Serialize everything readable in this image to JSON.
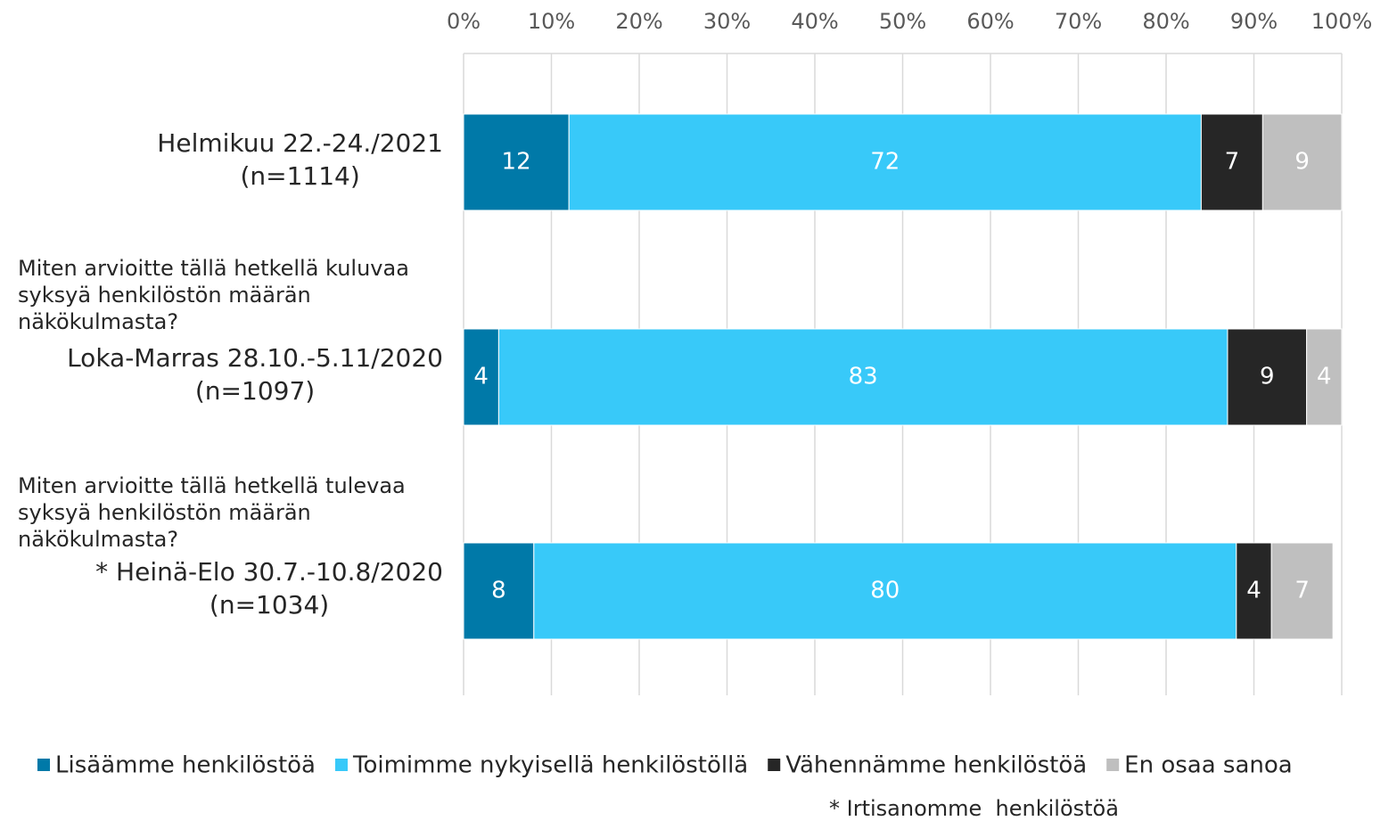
{
  "chart_data": {
    "type": "stacked-bar-horizontal",
    "categories": [
      [
        "Helmikuu 22.-24./2021",
        "(n=1114)"
      ],
      [
        "Loka-Marras 28.10.-5.11/2020",
        "(n=1097)"
      ],
      [
        "* Heinä-Elo 30.7.-10.8/2020",
        "(n=1034)"
      ]
    ],
    "series": [
      {
        "name": "Lisäämme henkilöstöä",
        "color": "#0079a8",
        "values": [
          12,
          4,
          8
        ]
      },
      {
        "name": "Toimimme nykyisellä henkilöstöllä",
        "color": "#38c9f9",
        "values": [
          72,
          83,
          80
        ]
      },
      {
        "name": "Vähennämme henkilöstöä",
        "color": "#262626",
        "values": [
          7,
          9,
          4
        ]
      },
      {
        "name": "En osaa sanoa",
        "color": "#bfbfbf",
        "values": [
          9,
          4,
          7
        ]
      }
    ],
    "annotations": [
      [
        "Miten arvioitte tällä hetkellä kuluvaa",
        "syksyä henkilöstön määrän",
        "näkökulmasta?"
      ],
      [
        "Miten arvioitte tällä hetkellä tulevaa",
        "syksyä henkilöstön määrän",
        "näkökulmasta?"
      ]
    ],
    "footnote": "* Irtisanomme  henkilöstöä",
    "xlim": [
      0,
      100
    ],
    "xticks": [
      {
        "value": 0,
        "label": "0%"
      },
      {
        "value": 10,
        "label": "10%"
      },
      {
        "value": 20,
        "label": "20%"
      },
      {
        "value": 30,
        "label": "30%"
      },
      {
        "value": 40,
        "label": "40%"
      },
      {
        "value": 50,
        "label": "50%"
      },
      {
        "value": 60,
        "label": "60%"
      },
      {
        "value": 70,
        "label": "70%"
      },
      {
        "value": 80,
        "label": "80%"
      },
      {
        "value": 90,
        "label": "90%"
      },
      {
        "value": 100,
        "label": "100%"
      }
    ],
    "grid": true,
    "legend": "bottom"
  }
}
